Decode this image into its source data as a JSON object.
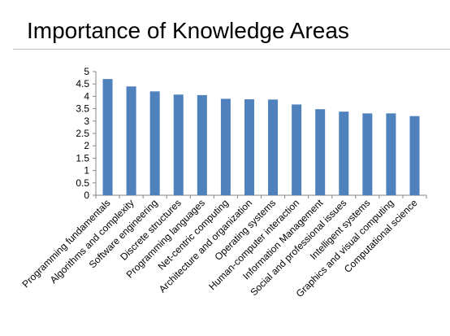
{
  "slide": {
    "title": "Importance of Knowledge Areas"
  },
  "chart_data": {
    "type": "bar",
    "title": "",
    "xlabel": "",
    "ylabel": "",
    "ylim": [
      0,
      5
    ],
    "ytick_step": 0.5,
    "ytick_labels": [
      "0",
      "0.5",
      "1",
      "1.5",
      "2",
      "2.5",
      "3",
      "3.5",
      "4",
      "4.5",
      "5"
    ],
    "grid": false,
    "legend": "none",
    "bar_color": "#4f81bd",
    "categories": [
      "Programming fundamentals",
      "Algorithms and complexity",
      "Software engineering",
      "Discrete structures",
      "Programming languages",
      "Net-centric computing",
      "Architecture and organization",
      "Operating systems",
      "Human-computer interaction",
      "Information Management",
      "Social and professional issues",
      "Intelligent systems",
      "Graphics and visual computing",
      "Computational science"
    ],
    "values": [
      4.7,
      4.4,
      4.2,
      4.07,
      4.05,
      3.9,
      3.88,
      3.87,
      3.67,
      3.48,
      3.38,
      3.31,
      3.31,
      3.2
    ]
  }
}
